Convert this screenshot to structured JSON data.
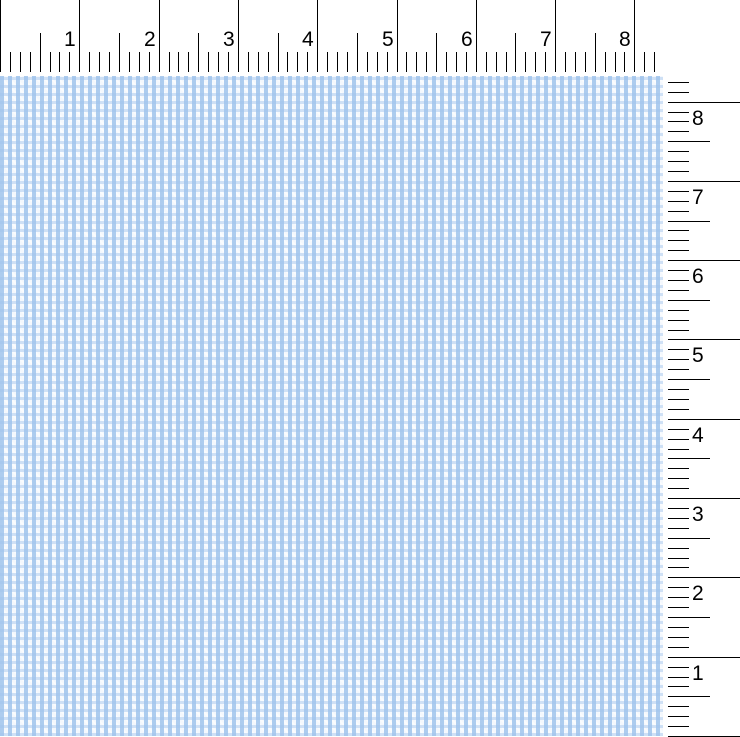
{
  "ruler_unit": "inch",
  "top_ruler": {
    "labels": [
      "1",
      "2",
      "3",
      "4",
      "5",
      "6",
      "7",
      "8"
    ]
  },
  "right_ruler": {
    "labels": [
      "8",
      "7",
      "6",
      "5",
      "4",
      "3",
      "2",
      "1"
    ]
  },
  "fabric": {
    "pattern": "houndstooth",
    "colors": [
      "#a0c4ec",
      "#ffffff"
    ]
  }
}
